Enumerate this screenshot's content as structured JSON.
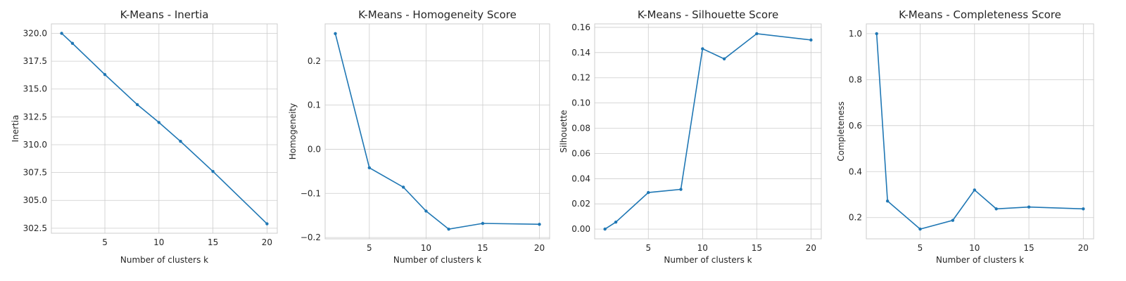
{
  "figure": {
    "background": "#ffffff",
    "line_color": "#1f77b4",
    "grid_color": "#cccccc"
  },
  "chart_data": [
    {
      "type": "line",
      "title": "K-Means - Inertia",
      "xlabel": "Number of clusters k",
      "ylabel": "Inertia",
      "x": [
        1,
        2,
        5,
        8,
        10,
        12,
        15,
        20
      ],
      "series": [
        {
          "values": [
            320.0,
            319.1,
            316.3,
            313.6,
            312.0,
            310.3,
            307.6,
            302.9
          ]
        }
      ],
      "xlim": [
        0.05,
        20.95
      ],
      "ylim": [
        302.05,
        320.85
      ],
      "xticks": [
        5,
        10,
        15,
        20
      ],
      "xtick_labels": [
        "5",
        "10",
        "15",
        "20"
      ],
      "yticks": [
        302.5,
        305.0,
        307.5,
        310.0,
        312.5,
        315.0,
        317.5,
        320.0
      ],
      "ytick_labels": [
        "302.5",
        "305.0",
        "307.5",
        "310.0",
        "312.5",
        "315.0",
        "317.5",
        "320.0"
      ],
      "grid": true
    },
    {
      "type": "line",
      "title": "K-Means - Homogeneity Score",
      "xlabel": "Number of clusters k",
      "ylabel": "Homogeneity",
      "x": [
        2,
        5,
        8,
        10,
        12,
        15,
        20
      ],
      "series": [
        {
          "values": [
            0.262,
            -0.042,
            -0.086,
            -0.14,
            -0.181,
            -0.168,
            -0.17
          ]
        }
      ],
      "xlim": [
        1.1,
        20.9
      ],
      "ylim": [
        -0.203,
        0.284
      ],
      "xticks": [
        5,
        10,
        15,
        20
      ],
      "xtick_labels": [
        "5",
        "10",
        "15",
        "20"
      ],
      "yticks": [
        -0.2,
        -0.1,
        0.0,
        0.1,
        0.2
      ],
      "ytick_labels": [
        "−0.2",
        "−0.1",
        "0.0",
        "0.1",
        "0.2"
      ],
      "grid": true
    },
    {
      "type": "line",
      "title": "K-Means - Silhouette Score",
      "xlabel": "Number of clusters k",
      "ylabel": "Silhouette",
      "x": [
        1,
        2,
        5,
        8,
        10,
        12,
        15,
        20
      ],
      "series": [
        {
          "values": [
            0.0,
            0.0055,
            0.029,
            0.0315,
            0.143,
            0.135,
            0.155,
            0.15
          ]
        }
      ],
      "xlim": [
        0.05,
        20.95
      ],
      "ylim": [
        -0.00775,
        0.16275
      ],
      "xticks": [
        5,
        10,
        15,
        20
      ],
      "xtick_labels": [
        "5",
        "10",
        "15",
        "20"
      ],
      "yticks": [
        0.0,
        0.02,
        0.04,
        0.06,
        0.08,
        0.1,
        0.12,
        0.14,
        0.16
      ],
      "ytick_labels": [
        "0.00",
        "0.02",
        "0.04",
        "0.06",
        "0.08",
        "0.10",
        "0.12",
        "0.14",
        "0.16"
      ],
      "grid": true
    },
    {
      "type": "line",
      "title": "K-Means - Completeness Score",
      "xlabel": "Number of clusters k",
      "ylabel": "Completeness",
      "x": [
        1,
        2,
        5,
        8,
        10,
        12,
        15,
        20
      ],
      "series": [
        {
          "values": [
            1.0,
            0.272,
            0.15,
            0.188,
            0.32,
            0.238,
            0.246,
            0.238
          ]
        }
      ],
      "xlim": [
        0.05,
        20.95
      ],
      "ylim": [
        0.1075,
        1.0425
      ],
      "xticks": [
        5,
        10,
        15,
        20
      ],
      "xtick_labels": [
        "5",
        "10",
        "15",
        "20"
      ],
      "yticks": [
        0.2,
        0.4,
        0.6,
        0.8,
        1.0
      ],
      "ytick_labels": [
        "0.2",
        "0.4",
        "0.6",
        "0.8",
        "1.0"
      ],
      "grid": true
    }
  ]
}
